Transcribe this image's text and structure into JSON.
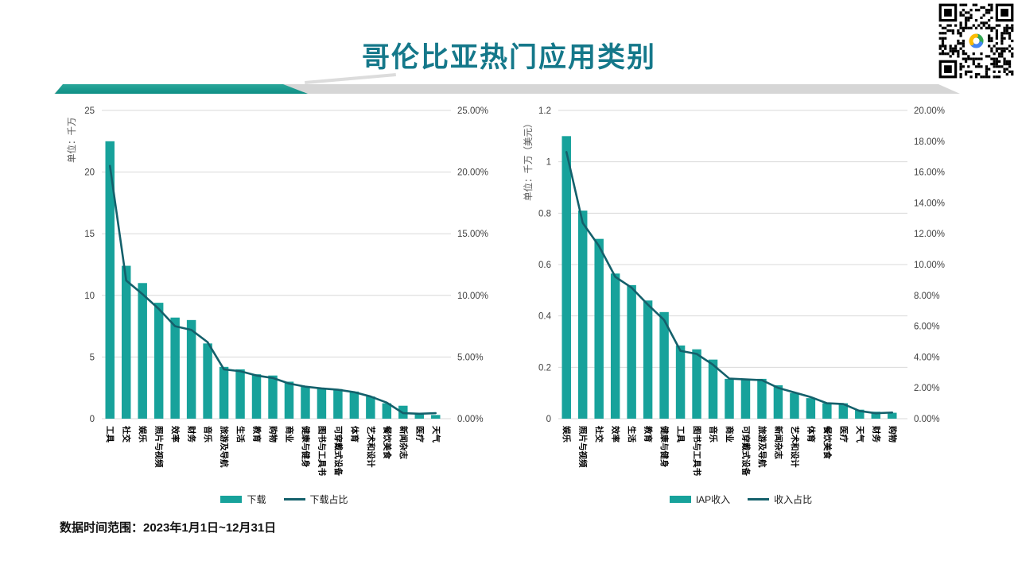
{
  "page": {
    "title": "哥伦比亚热门应用类别",
    "footnote": "数据时间范围：2023年1月1日~12月31日"
  },
  "colors": {
    "title": "#15788a",
    "bar": "#17a29b",
    "line": "#14606b",
    "grid": "#d9d9d9",
    "tick_text": "#404040",
    "category_text": "#000000",
    "ribbon_teal": "#12968c",
    "ribbon_gray": "#d6d6d6"
  },
  "chart_data": [
    {
      "type": "bar",
      "name": "downloads-by-category",
      "unit_label": "单位：千万",
      "categories": [
        "工具",
        "社交",
        "娱乐",
        "照片与视频",
        "效率",
        "财务",
        "音乐",
        "旅游及导航",
        "生活",
        "教育",
        "购物",
        "商业",
        "健康与健身",
        "图书与工具书",
        "可穿戴式设备",
        "体育",
        "艺术和设计",
        "餐饮美食",
        "新闻杂志",
        "医疗",
        "天气"
      ],
      "series": [
        {
          "name": "下载",
          "type": "bar",
          "axis": "left",
          "values": [
            22.5,
            12.4,
            11.0,
            9.4,
            8.2,
            8.0,
            6.1,
            4.2,
            4.0,
            3.6,
            3.5,
            3.0,
            2.6,
            2.5,
            2.4,
            2.2,
            1.8,
            1.25,
            1.05,
            0.35,
            0.3
          ]
        },
        {
          "name": "下载占比",
          "type": "line",
          "axis": "right",
          "values": [
            20.5,
            11.2,
            10.1,
            8.9,
            7.5,
            7.2,
            6.2,
            4.0,
            3.85,
            3.5,
            3.3,
            2.85,
            2.6,
            2.45,
            2.35,
            2.15,
            1.8,
            1.3,
            0.45,
            0.4,
            0.45
          ]
        }
      ],
      "left_axis": {
        "min": 0,
        "max": 25,
        "tick_labels": [
          "0",
          "5",
          "10",
          "15",
          "20",
          "25"
        ]
      },
      "right_axis": {
        "min": 0,
        "max": 25,
        "tick_labels": [
          "0.00%",
          "5.00%",
          "10.00%",
          "15.00%",
          "20.00%",
          "25.00%"
        ]
      },
      "legend_position": "bottom",
      "grid": true
    },
    {
      "type": "bar",
      "name": "iap-revenue-by-category",
      "unit_label": "单位：千万（美元）",
      "categories": [
        "娱乐",
        "照片与视频",
        "社交",
        "效率",
        "生活",
        "教育",
        "健康与健身",
        "工具",
        "图书与工具书",
        "音乐",
        "商业",
        "可穿戴式设备",
        "旅游及导航",
        "新闻杂志",
        "艺术和设计",
        "体育",
        "餐饮美食",
        "医疗",
        "天气",
        "财务",
        "购物"
      ],
      "series": [
        {
          "name": "IAP收入",
          "type": "bar",
          "axis": "left",
          "values": [
            1.1,
            0.81,
            0.7,
            0.565,
            0.52,
            0.46,
            0.415,
            0.285,
            0.27,
            0.23,
            0.155,
            0.155,
            0.155,
            0.13,
            0.1,
            0.08,
            0.06,
            0.06,
            0.035,
            0.027,
            0.023
          ]
        },
        {
          "name": "收入占比",
          "type": "line",
          "axis": "right",
          "values": [
            17.3,
            12.7,
            11.2,
            9.2,
            8.5,
            7.4,
            6.4,
            4.4,
            4.2,
            3.5,
            2.6,
            2.55,
            2.5,
            2.0,
            1.7,
            1.4,
            1.0,
            0.95,
            0.5,
            0.35,
            0.4
          ]
        }
      ],
      "left_axis": {
        "min": 0,
        "max": 1.2,
        "tick_labels": [
          "0",
          "0.2",
          "0.4",
          "0.6",
          "0.8",
          "1",
          "1.2"
        ]
      },
      "right_axis": {
        "min": 0,
        "max": 20,
        "tick_labels": [
          "0.00%",
          "2.00%",
          "4.00%",
          "6.00%",
          "8.00%",
          "10.00%",
          "12.00%",
          "14.00%",
          "16.00%",
          "18.00%",
          "20.00%"
        ]
      },
      "legend_position": "bottom",
      "grid": true
    }
  ]
}
